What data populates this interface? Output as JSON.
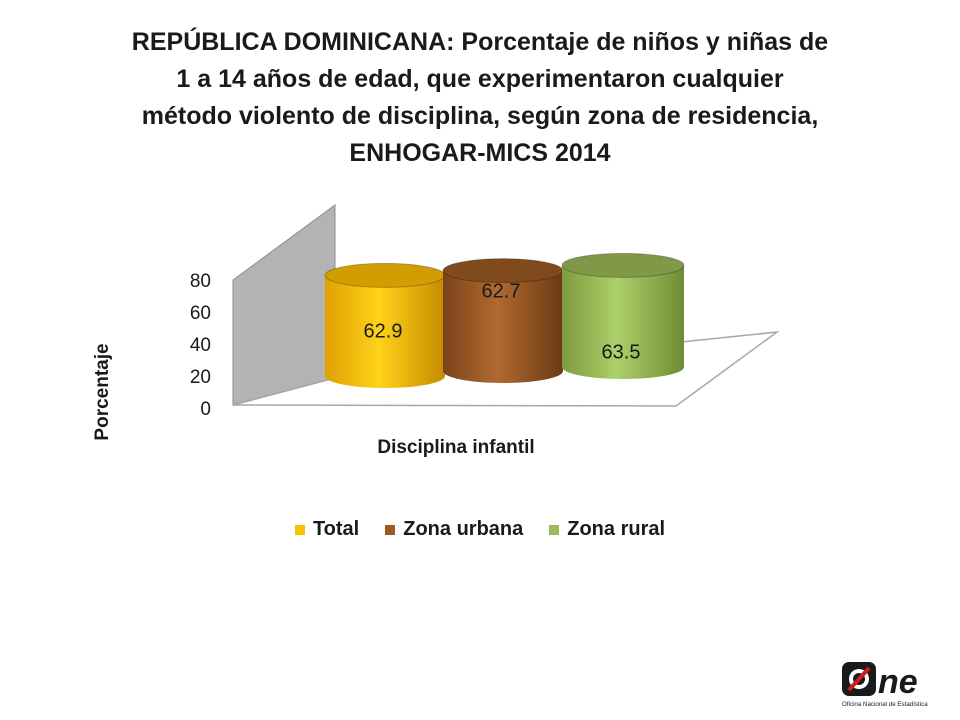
{
  "title_lines": [
    "REPÚBLICA DOMINICANA: Porcentaje de niños y niñas de",
    "1 a 14 años de edad, que experimentaron cualquier",
    "método violento de disciplina, según zona de residencia,",
    "ENHOGAR-MICS 2014"
  ],
  "chart_data": {
    "type": "bar",
    "title": "REPÚBLICA DOMINICANA: Porcentaje de niños y niñas de 1 a 14 años de edad, que experimentaron cualquier método violento de disciplina, según zona de residencia, ENHOGAR-MICS 2014",
    "categories": [
      "Disciplina infantil"
    ],
    "series": [
      {
        "name": "Total",
        "values": [
          62.9
        ],
        "color": "#ffc000"
      },
      {
        "name": "Zona urbana",
        "values": [
          62.7
        ],
        "color": "#9c5a23"
      },
      {
        "name": "Zona rural",
        "values": [
          63.5
        ],
        "color": "#9bbb59"
      }
    ],
    "xlabel": "Disciplina infantil",
    "ylabel": "Porcentaje",
    "ylim": [
      0,
      80
    ],
    "yticks": [
      0,
      20,
      40,
      60,
      80
    ],
    "legend_position": "bottom",
    "style": "3d-cylinder",
    "grid": false
  },
  "logo": {
    "text": "One",
    "subtitle": "Oficina Nacional de Estadística"
  }
}
